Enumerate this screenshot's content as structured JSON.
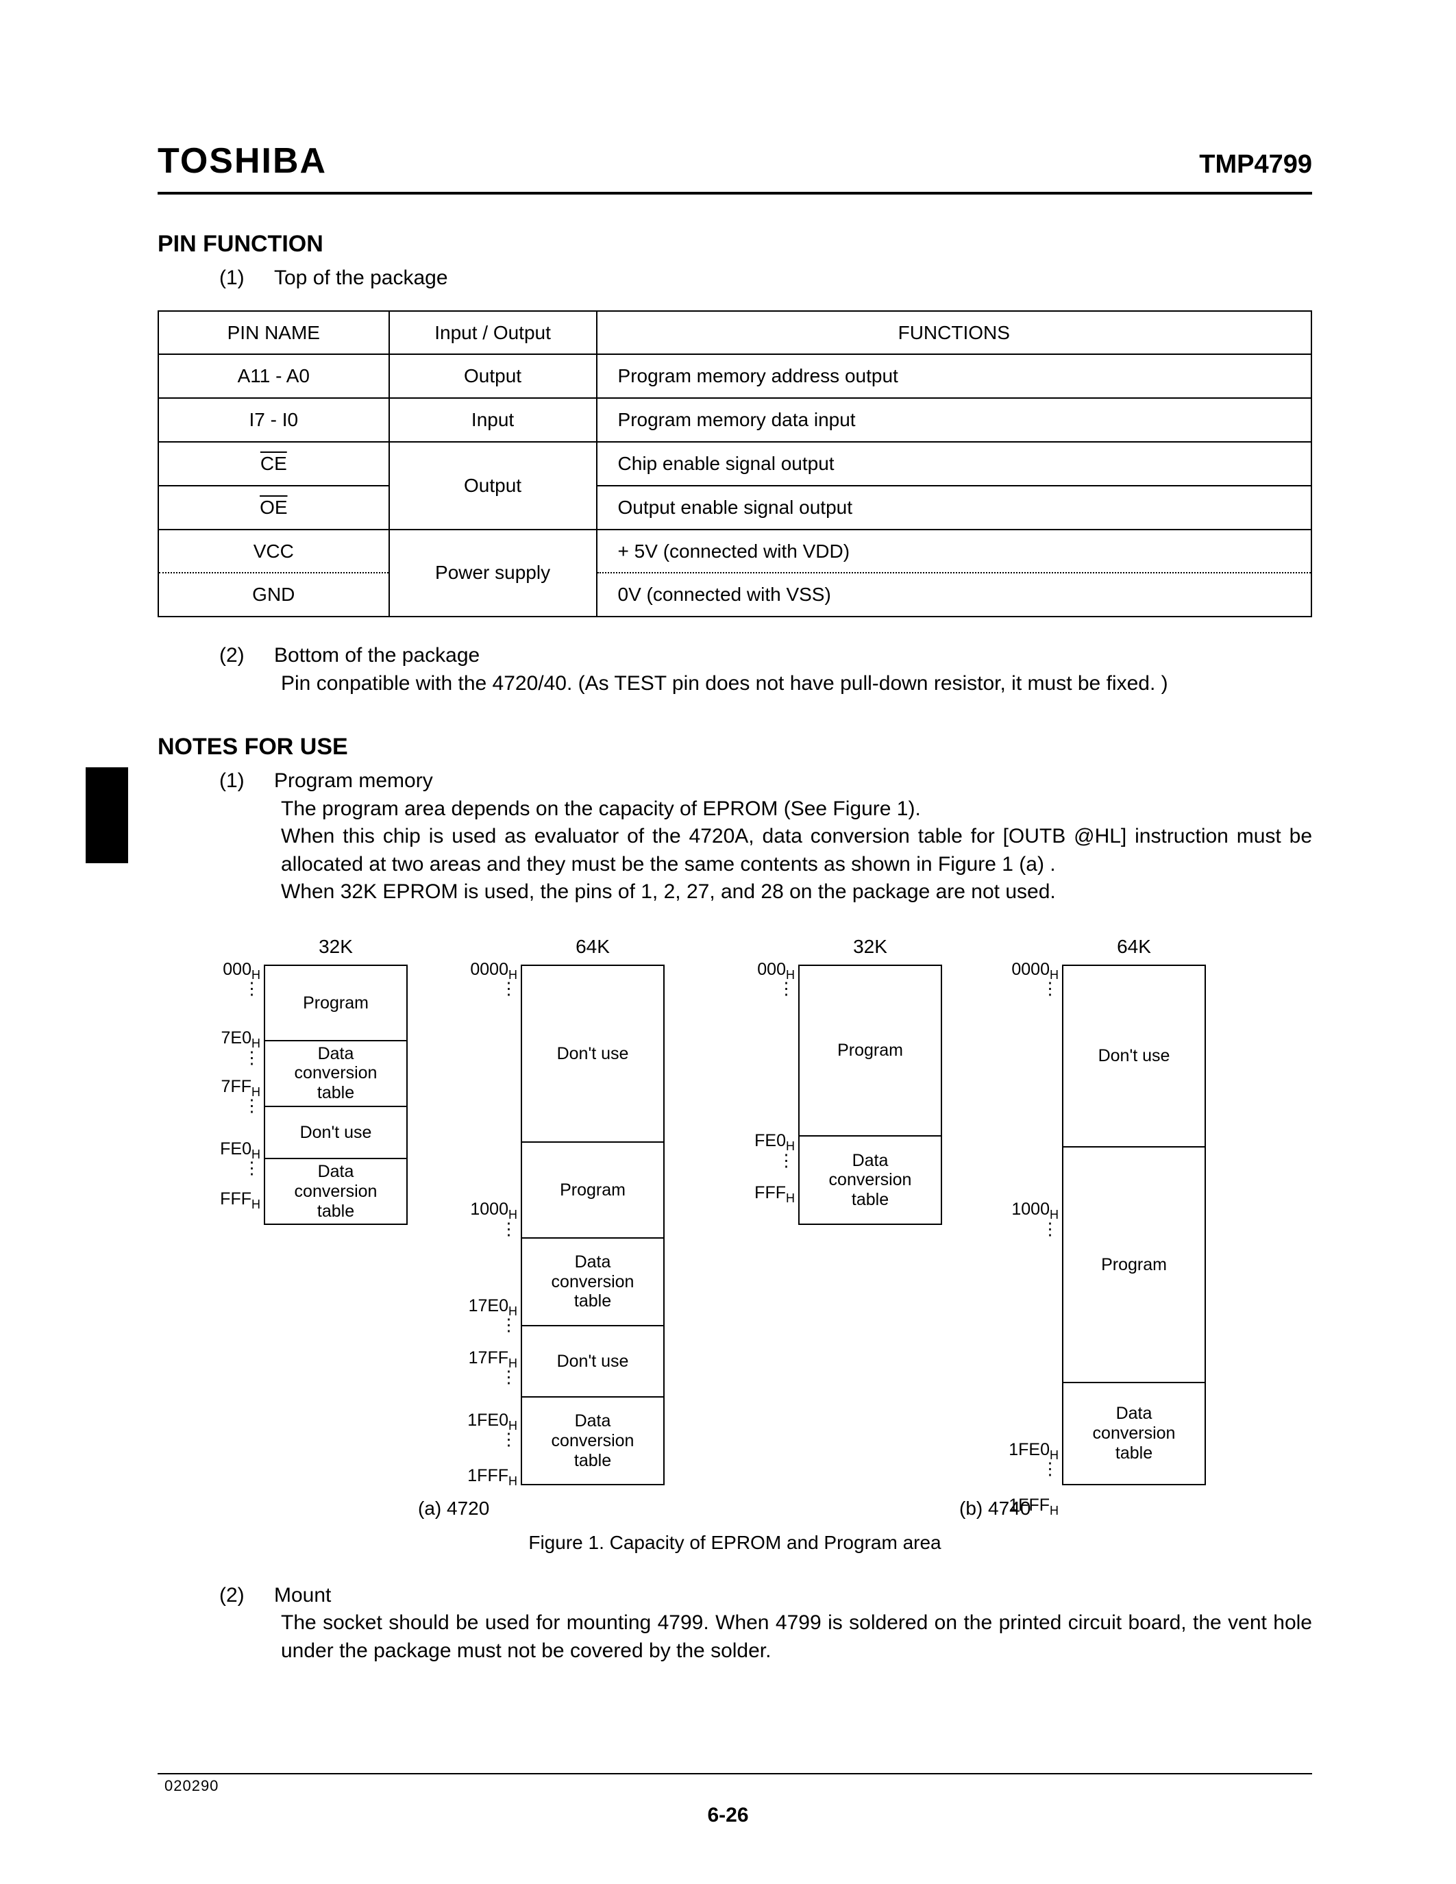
{
  "header": {
    "brand": "TOSHIBA",
    "part": "TMP4799"
  },
  "section1": {
    "title": "PIN FUNCTION",
    "item1_num": "(1)",
    "item1_label": "Top of the package",
    "item2_num": "(2)",
    "item2_label": "Bottom of the package",
    "item2_body": "Pin conpatible with the 4720/40.  (As TEST pin does not have pull-down resistor, it must be fixed. )"
  },
  "table": {
    "head": {
      "c1": "PIN NAME",
      "c2": "Input / Output",
      "c3": "FUNCTIONS"
    },
    "rows": [
      {
        "name": "A11   -   A0",
        "io": "Output",
        "fn": "Program memory address output"
      },
      {
        "name": "I7   -   I0",
        "io": "Input",
        "fn": "Program memory data input"
      },
      {
        "name_html": "CE",
        "io": "Output",
        "fn": "Chip enable signal output",
        "rowspan_io": 2,
        "overline": true
      },
      {
        "name_html": "OE",
        "fn": "Output enable signal output",
        "overline": true
      },
      {
        "name": "VCC",
        "io": "Power supply",
        "fn": "+ 5V (connected with VDD)",
        "rowspan_io": 2
      },
      {
        "name": "GND",
        "fn": "0V (connected with VSS)",
        "dotted_top": true
      }
    ]
  },
  "section2": {
    "title": "NOTES FOR USE",
    "item1_num": "(1)",
    "item1_label": "Program memory",
    "item1_p1": "The program area depends on the capacity of EPROM (See Figure 1).",
    "item1_p2": "When this chip is used as evaluator of the 4720A, data conversion table for [OUTB  @HL] instruction must be allocated at two areas and they must be the same contents as shown in Figure 1 (a) .",
    "item1_p3": "When 32K EPROM is used, the pins of 1, 2, 27, and 28 on the package are not used.",
    "item2_num": "(2)",
    "item2_label": "Mount",
    "item2_body": "The socket should be used for mounting 4799.  When 4799 is soldered on the printed circuit board, the vent hole under the package must not be covered by the solder."
  },
  "figure": {
    "col_titles": {
      "a32": "32K",
      "a64": "64K",
      "b32": "32K",
      "b64": "64K"
    },
    "segs": {
      "program": "Program",
      "dct": "Data\nconversion\ntable",
      "dont": "Don't use"
    },
    "addrs": {
      "a32": [
        "000",
        "7E0",
        "7FF",
        "FE0",
        "FFF"
      ],
      "a64": [
        "0000",
        "1000",
        "17E0",
        "17FF",
        "1FE0",
        "1FFF"
      ],
      "b32": [
        "000",
        "FE0",
        "FFF"
      ],
      "b64": [
        "0000",
        "1000",
        "1FE0",
        "1FFF"
      ]
    },
    "sub": "H",
    "label_a": "(a)   4720",
    "label_b": "(b)   4740",
    "caption": "Figure 1.    Capacity of EPROM and Program area"
  },
  "footer": {
    "code": "020290",
    "page": "6-26"
  }
}
